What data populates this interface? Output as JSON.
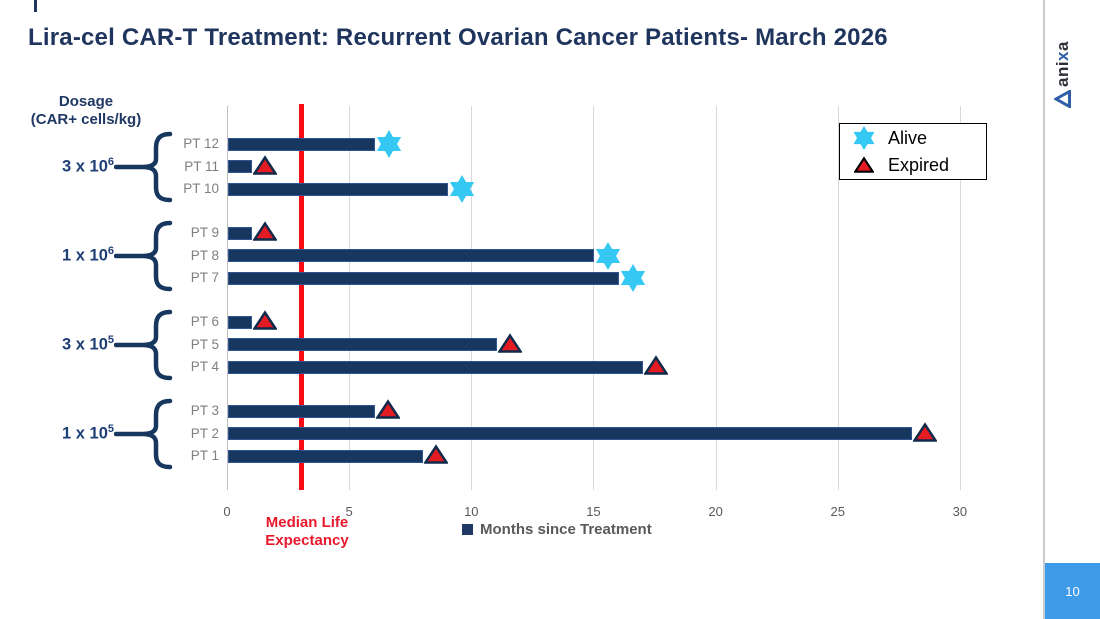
{
  "slide": {
    "title": "Lira-cel CAR-T Treatment: Recurrent Ovarian Cancer Patients- March 2026",
    "page_number": "10",
    "logo": {
      "part1": "ani",
      "part2": "x",
      "part3": "a"
    }
  },
  "dosage_axis": {
    "title_line1": "Dosage",
    "title_line2": "(CAR+ cells/kg)"
  },
  "median_line": {
    "label_line1": "Median Life",
    "label_line2": "Expectancy"
  },
  "series_legend": {
    "alive_label": "Alive",
    "expired_label": "Expired"
  },
  "x_axis_legend": "Months since Treatment",
  "colors": {
    "title_navy": "#1f355e",
    "bar_navy": "#17375e",
    "alive_cyan": "#35c8f2",
    "expired_red": "#e31b23",
    "median_red": "#f80b12",
    "page_box_blue": "#3e9be9",
    "gridline_gray": "#d9d9d9"
  },
  "chart_data": {
    "type": "bar",
    "orientation": "horizontal",
    "title": "Lira-cel CAR-T Treatment: Recurrent Ovarian Cancer Patients- March 2026",
    "xlabel": "Months since Treatment",
    "ylabel": "Dosage (CAR+ cells/kg)",
    "x_ticks": [
      0,
      5,
      10,
      15,
      20,
      25,
      30
    ],
    "xlim": [
      0,
      32
    ],
    "grid": true,
    "legend_position": "top-right",
    "median_life_expectancy_months": 3,
    "groups": [
      {
        "dosage_base": "3 x 10",
        "dosage_exp": "6",
        "patients": [
          {
            "label": "PT 12",
            "months": 6,
            "status": "Alive"
          },
          {
            "label": "PT 11",
            "months": 1,
            "status": "Expired"
          },
          {
            "label": "PT 10",
            "months": 9,
            "status": "Alive"
          }
        ]
      },
      {
        "dosage_base": "1 x 10",
        "dosage_exp": "6",
        "patients": [
          {
            "label": "PT 9",
            "months": 1,
            "status": "Expired"
          },
          {
            "label": "PT 8",
            "months": 15,
            "status": "Alive"
          },
          {
            "label": "PT 7",
            "months": 16,
            "status": "Alive"
          }
        ]
      },
      {
        "dosage_base": "3 x 10",
        "dosage_exp": "5",
        "patients": [
          {
            "label": "PT 6",
            "months": 1,
            "status": "Expired"
          },
          {
            "label": "PT 5",
            "months": 11,
            "status": "Expired"
          },
          {
            "label": "PT 4",
            "months": 17,
            "status": "Expired"
          }
        ]
      },
      {
        "dosage_base": "1 x 10",
        "dosage_exp": "5",
        "patients": [
          {
            "label": "PT 3",
            "months": 6,
            "status": "Expired"
          },
          {
            "label": "PT 2",
            "months": 28,
            "status": "Expired"
          },
          {
            "label": "PT 1",
            "months": 8,
            "status": "Expired"
          }
        ]
      }
    ]
  }
}
